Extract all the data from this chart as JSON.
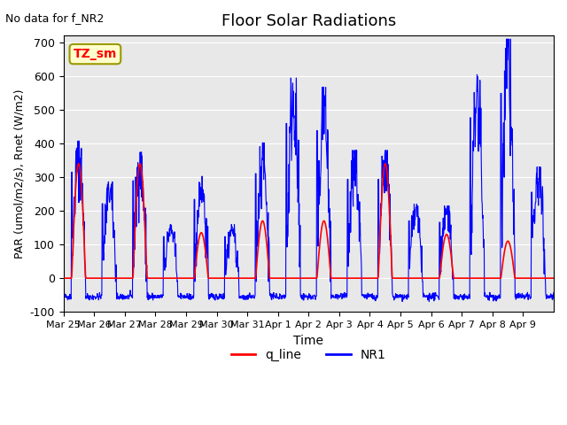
{
  "title": "Floor Solar Radiations",
  "subtitle": "No data for f_NR2",
  "xlabel": "Time",
  "ylabel": "PAR (umol/m2/s), Rnet (W/m2)",
  "ylim": [
    -100,
    720
  ],
  "yticks": [
    -100,
    0,
    100,
    200,
    300,
    400,
    500,
    600,
    700
  ],
  "xtick_labels": [
    "Mar 25",
    "Mar 26",
    "Mar 27",
    "Mar 28",
    "Mar 29",
    "Mar 30",
    "Mar 31",
    "Apr 1",
    "Apr 2",
    "Apr 3",
    "Apr 4",
    "Apr 5",
    "Apr 6",
    "Apr 7",
    "Apr 8",
    "Apr 9"
  ],
  "bg_color": "#e8e8e8",
  "q_line_color": "red",
  "NR1_color": "blue",
  "annotation_text": "TZ_sm",
  "annotation_facecolor": "#ffffcc",
  "annotation_edgecolor": "#999900",
  "legend_labels": [
    "q_line",
    "NR1"
  ],
  "n_days": 16,
  "points_per_day": 96,
  "q_peaks": [
    340,
    0,
    340,
    0,
    135,
    0,
    170,
    0,
    170,
    0,
    340,
    0,
    130,
    0,
    110,
    0
  ],
  "NR1_peaks_day": [
    370,
    260,
    340,
    145,
    275,
    145,
    365,
    540,
    515,
    345,
    345,
    200,
    195,
    560,
    645,
    300
  ],
  "NR1_trough": -55,
  "sunrise": 0.27,
  "sunset": 0.73
}
